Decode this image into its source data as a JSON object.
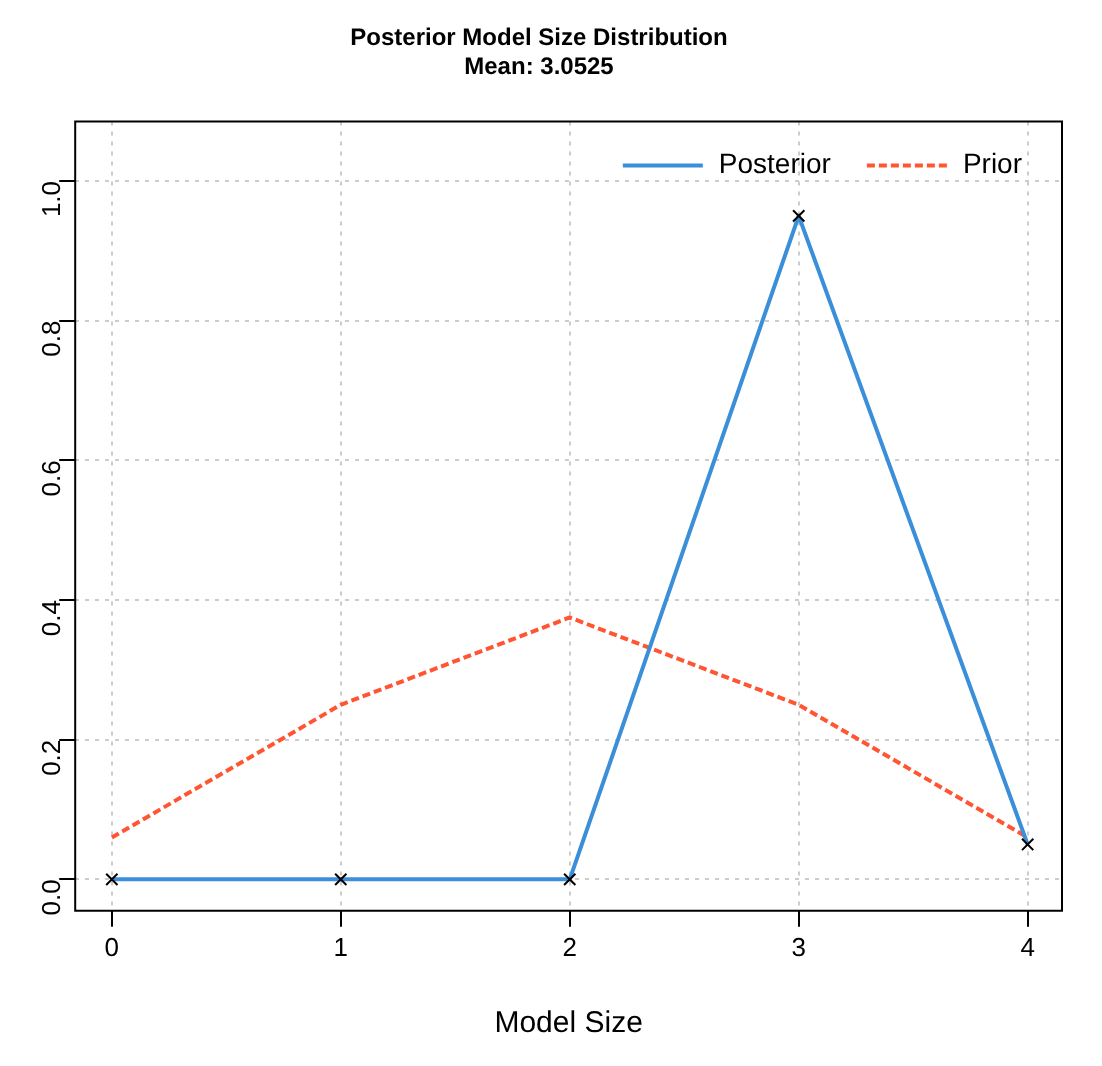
{
  "chart_data": {
    "type": "line",
    "title": "Posterior Model Size Distribution",
    "subtitle": "Mean: 3.0525",
    "xlabel": "Model Size",
    "x": [
      0,
      1,
      2,
      3,
      4
    ],
    "series": [
      {
        "name": "Posterior",
        "color": "#3b8fd9",
        "values": [
          0,
          0,
          0,
          0.95,
          0.05
        ],
        "marker": "cross",
        "line_style": "solid"
      },
      {
        "name": "Prior",
        "color": "#ff5533",
        "values": [
          0.06,
          0.25,
          0.375,
          0.25,
          0.06
        ],
        "marker": "none",
        "line_style": "dashed"
      }
    ],
    "xlim": [
      -0.16,
      4.15
    ],
    "xticks": [
      0,
      1,
      2,
      3,
      4
    ],
    "ylim": [
      -0.045,
      1.085
    ],
    "yticks": [
      {
        "value": 0,
        "label": "0.0"
      },
      0.2,
      0.4,
      0.6,
      0.8,
      {
        "value": 1,
        "label": "1.0"
      }
    ],
    "grid": true,
    "legend": "top right"
  }
}
